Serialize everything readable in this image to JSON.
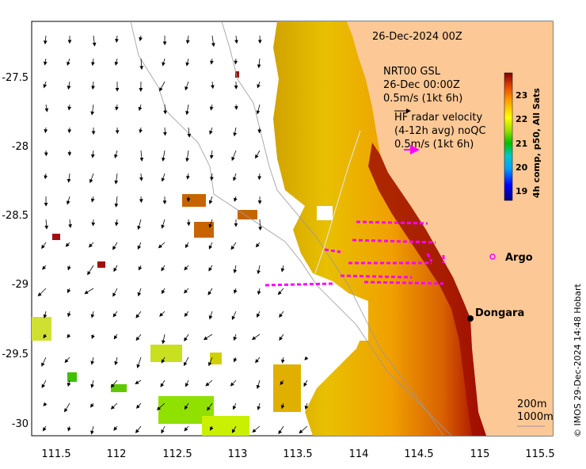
{
  "map": {
    "title": "26-Dec-2024 00Z",
    "x_ticks": [
      "111.5",
      "112",
      "112.5",
      "113",
      "113.5",
      "114",
      "114.5",
      "115",
      "115.5"
    ],
    "y_ticks": [
      "-27.5",
      "-28",
      "-28.5",
      "-29",
      "-29.5",
      "-30"
    ],
    "model_label_1": "NRT00 GSL",
    "model_label_2": "26-Dec 00:00Z",
    "model_label_3": "0.5m/s (1kt 6h)",
    "radar_label_1": "HF radar velocity",
    "radar_label_2": "(4-12h avg) noQC",
    "radar_label_3": "0.5m/s (1kt 6h)",
    "argo_label": "Argo",
    "station_label": "Dongara",
    "depth_200": "200m",
    "depth_1000": "1000m",
    "credit": "© IMOS 29-Dec-2024 14:48 Hobart",
    "colorbar_title": "4h comp, p50, All Sats",
    "colorbar_ticks": [
      "23",
      "22",
      "21",
      "20",
      "19"
    ],
    "colors": {
      "land": "#fcc896",
      "radar": "#ff00ff",
      "arrow": "#000000"
    }
  }
}
